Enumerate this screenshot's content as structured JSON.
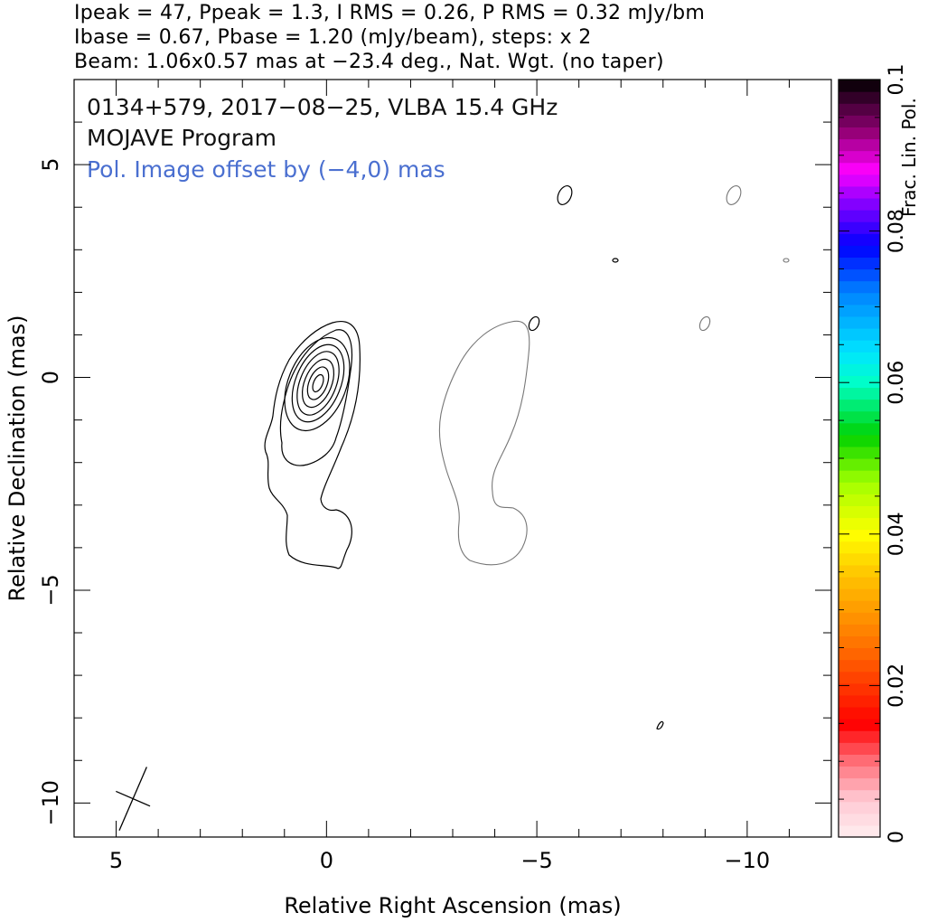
{
  "header": {
    "line1": "Ipeak = 47, Ppeak = 1.3, I RMS = 0.26, P RMS = 0.32 mJy/bm",
    "line2": "Ibase = 0.67, Pbase = 1.20 (mJy/beam), steps: x 2",
    "line3": "Beam: 1.06x0.57 mas at −23.4 deg., Nat. Wgt. (no taper)"
  },
  "chart_data": {
    "type": "contour",
    "annotations": {
      "source_line": "0134+579, 2017−08−25, VLBA 15.4 GHz",
      "program_line": "MOJAVE Program",
      "offset_line": "Pol. Image offset by (−4,0) mas"
    },
    "offset_color": "#4a6fd0",
    "xlabel": "Relative Right Ascension (mas)",
    "ylabel": "Relative Declination (mas)",
    "xlim": [
      6,
      -12
    ],
    "ylim": [
      -10.8,
      7
    ],
    "xticks": [
      5,
      0,
      -5,
      -10
    ],
    "xtick_labels": [
      "5",
      "0",
      "−5",
      "−10"
    ],
    "yticks": [
      5,
      0,
      -5,
      -10
    ],
    "ytick_labels": [
      "5",
      "0",
      "−5",
      "−10"
    ],
    "peak": [
      0,
      0
    ],
    "beam": {
      "major_mas": 1.06,
      "minor_mas": 0.57,
      "pa_deg": -23.4,
      "center": [
        4.6,
        -9.9
      ]
    },
    "colorbar": {
      "label": "Frac. Lin. Pol.",
      "range": [
        0,
        0.1
      ],
      "ticks": [
        0,
        0.02,
        0.04,
        0.06,
        0.08,
        0.1
      ],
      "tick_labels": [
        "0",
        "0.02",
        "0.04",
        "0.06",
        "0.08",
        "0.1"
      ]
    },
    "grid": false
  }
}
